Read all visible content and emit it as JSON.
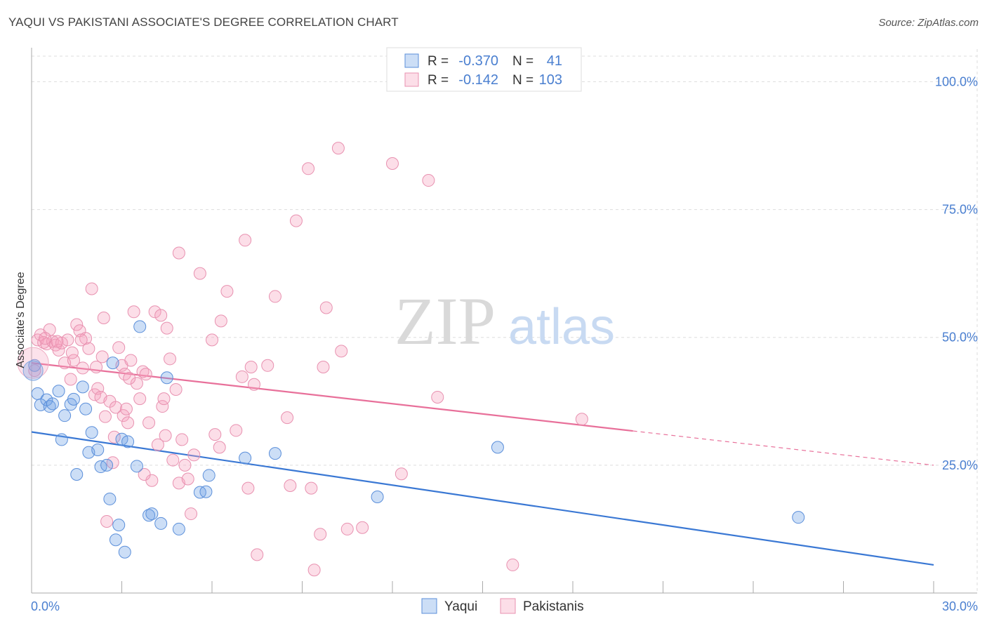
{
  "header": {
    "title": "YAQUI VS PAKISTANI ASSOCIATE'S DEGREE CORRELATION CHART",
    "source": "Source: ZipAtlas.com"
  },
  "watermark": {
    "zip": "ZIP",
    "atlas": "atlas"
  },
  "colors": {
    "blue": "#3a78d4",
    "blue_fill": "rgba(110,160,230,0.35)",
    "pink": "#e8709a",
    "pink_fill": "rgba(245,160,190,0.35)",
    "tick_label": "#4a7fd0",
    "grid": "#dddddd"
  },
  "chart_data": {
    "type": "scatter",
    "title": "YAQUI VS PAKISTANI ASSOCIATE'S DEGREE CORRELATION CHART",
    "xlabel": "",
    "ylabel": "Associate's Degree",
    "xlim": [
      0,
      30
    ],
    "ylim": [
      0,
      105
    ],
    "x_tick_labels": [
      {
        "value": 0,
        "label": "0.0%"
      },
      {
        "value": 30,
        "label": "30.0%"
      }
    ],
    "y_tick_labels": [
      {
        "value": 25,
        "label": "25.0%"
      },
      {
        "value": 50,
        "label": "50.0%"
      },
      {
        "value": 75,
        "label": "75.0%"
      },
      {
        "value": 100,
        "label": "100.0%"
      }
    ],
    "grid": true,
    "legend": {
      "placement": "top-center",
      "rows": [
        {
          "r_label": "R =",
          "r_value": "-0.370",
          "n_label": "N =",
          "n_value": "41"
        },
        {
          "r_label": "R =",
          "r_value": "-0.142",
          "n_label": "N =",
          "n_value": "103"
        }
      ],
      "bottom": [
        "Yaqui",
        "Pakistanis"
      ]
    },
    "series": [
      {
        "name": "Yaqui",
        "color": "#3a78d4",
        "trend": {
          "x0": 0,
          "y0": 31.5,
          "x1": 30,
          "y1": 5.5
        },
        "points": [
          [
            0.1,
            44.5
          ],
          [
            0.2,
            39.0
          ],
          [
            0.3,
            36.8
          ],
          [
            0.5,
            37.8
          ],
          [
            0.6,
            36.5
          ],
          [
            0.7,
            37.0
          ],
          [
            0.9,
            39.5
          ],
          [
            1.0,
            30.0
          ],
          [
            1.1,
            34.7
          ],
          [
            1.3,
            36.9
          ],
          [
            1.4,
            37.9
          ],
          [
            1.5,
            23.2
          ],
          [
            1.7,
            40.3
          ],
          [
            1.8,
            36.0
          ],
          [
            1.9,
            27.5
          ],
          [
            2.0,
            31.4
          ],
          [
            2.2,
            28.0
          ],
          [
            2.3,
            24.7
          ],
          [
            2.5,
            25.0
          ],
          [
            2.6,
            18.4
          ],
          [
            2.7,
            45.0
          ],
          [
            2.8,
            10.4
          ],
          [
            2.9,
            13.3
          ],
          [
            3.0,
            30.1
          ],
          [
            3.1,
            8.0
          ],
          [
            3.2,
            29.6
          ],
          [
            3.5,
            24.8
          ],
          [
            3.6,
            52.1
          ],
          [
            3.9,
            15.2
          ],
          [
            4.0,
            15.5
          ],
          [
            4.3,
            13.6
          ],
          [
            4.5,
            42.1
          ],
          [
            4.9,
            12.5
          ],
          [
            5.6,
            19.7
          ],
          [
            5.8,
            19.8
          ],
          [
            5.9,
            23.0
          ],
          [
            7.1,
            26.4
          ],
          [
            8.1,
            27.3
          ],
          [
            11.5,
            18.8
          ],
          [
            15.5,
            28.5
          ],
          [
            25.5,
            14.8
          ]
        ]
      },
      {
        "name": "Pakistanis",
        "color": "#e8709a",
        "trend": {
          "x0": 0,
          "y0": 45.0,
          "x1": 20.0,
          "y1": 31.7,
          "dash_x1": 30,
          "dash_y1": 25.0
        },
        "points": [
          [
            0.1,
            43.5
          ],
          [
            0.2,
            49.5
          ],
          [
            0.3,
            50.5
          ],
          [
            0.4,
            49.0
          ],
          [
            0.5,
            48.7
          ],
          [
            0.6,
            51.5
          ],
          [
            0.7,
            49.2
          ],
          [
            0.8,
            48.5
          ],
          [
            0.9,
            47.5
          ],
          [
            1.0,
            48.9
          ],
          [
            1.1,
            45.0
          ],
          [
            1.2,
            49.5
          ],
          [
            1.3,
            41.8
          ],
          [
            1.4,
            45.5
          ],
          [
            1.5,
            52.5
          ],
          [
            1.6,
            51.3
          ],
          [
            1.7,
            44.0
          ],
          [
            1.8,
            49.8
          ],
          [
            1.9,
            47.8
          ],
          [
            2.0,
            59.5
          ],
          [
            2.1,
            38.8
          ],
          [
            2.2,
            40.0
          ],
          [
            2.3,
            38.3
          ],
          [
            2.35,
            46.2
          ],
          [
            2.4,
            53.8
          ],
          [
            2.5,
            14.0
          ],
          [
            2.6,
            37.5
          ],
          [
            2.7,
            25.5
          ],
          [
            2.8,
            36.3
          ],
          [
            2.9,
            48.0
          ],
          [
            3.0,
            44.5
          ],
          [
            3.05,
            34.7
          ],
          [
            3.1,
            42.8
          ],
          [
            3.2,
            33.3
          ],
          [
            3.3,
            45.5
          ],
          [
            3.4,
            55.0
          ],
          [
            3.5,
            41.0
          ],
          [
            3.6,
            38.0
          ],
          [
            3.7,
            43.3
          ],
          [
            3.8,
            42.8
          ],
          [
            3.9,
            33.3
          ],
          [
            4.0,
            22.0
          ],
          [
            4.1,
            55.0
          ],
          [
            4.2,
            29.0
          ],
          [
            4.3,
            54.3
          ],
          [
            4.35,
            36.5
          ],
          [
            4.4,
            38.0
          ],
          [
            4.5,
            51.8
          ],
          [
            4.6,
            45.8
          ],
          [
            4.7,
            26.0
          ],
          [
            4.8,
            39.8
          ],
          [
            4.9,
            21.5
          ],
          [
            5.0,
            30.0
          ],
          [
            5.1,
            25.0
          ],
          [
            5.2,
            22.3
          ],
          [
            5.3,
            15.5
          ],
          [
            5.4,
            27.0
          ],
          [
            4.9,
            66.5
          ],
          [
            5.6,
            62.5
          ],
          [
            6.0,
            49.5
          ],
          [
            6.1,
            31.0
          ],
          [
            6.3,
            53.2
          ],
          [
            6.5,
            59.0
          ],
          [
            6.8,
            31.8
          ],
          [
            7.0,
            42.3
          ],
          [
            7.1,
            69.0
          ],
          [
            7.2,
            20.5
          ],
          [
            7.3,
            44.2
          ],
          [
            7.4,
            40.8
          ],
          [
            7.5,
            7.5
          ],
          [
            8.1,
            58.0
          ],
          [
            8.5,
            34.3
          ],
          [
            8.6,
            21.0
          ],
          [
            8.8,
            72.8
          ],
          [
            9.2,
            83.0
          ],
          [
            9.3,
            20.5
          ],
          [
            9.4,
            4.5
          ],
          [
            9.6,
            11.5
          ],
          [
            9.7,
            44.2
          ],
          [
            9.8,
            55.8
          ],
          [
            10.2,
            87.0
          ],
          [
            10.3,
            47.3
          ],
          [
            10.5,
            12.5
          ],
          [
            11.0,
            12.8
          ],
          [
            12.0,
            84.0
          ],
          [
            12.3,
            23.3
          ],
          [
            13.2,
            80.7
          ],
          [
            13.5,
            38.3
          ],
          [
            16.0,
            5.5
          ],
          [
            18.3,
            34.0
          ],
          [
            2.15,
            44.2
          ],
          [
            2.75,
            30.5
          ],
          [
            3.25,
            42.0
          ],
          [
            3.75,
            23.2
          ],
          [
            1.35,
            47.0
          ],
          [
            0.45,
            49.8
          ],
          [
            0.85,
            49.2
          ],
          [
            1.65,
            49.5
          ],
          [
            3.15,
            36.0
          ],
          [
            4.45,
            30.8
          ],
          [
            6.25,
            28.5
          ],
          [
            7.85,
            44.5
          ],
          [
            2.45,
            34.5
          ]
        ]
      }
    ]
  }
}
